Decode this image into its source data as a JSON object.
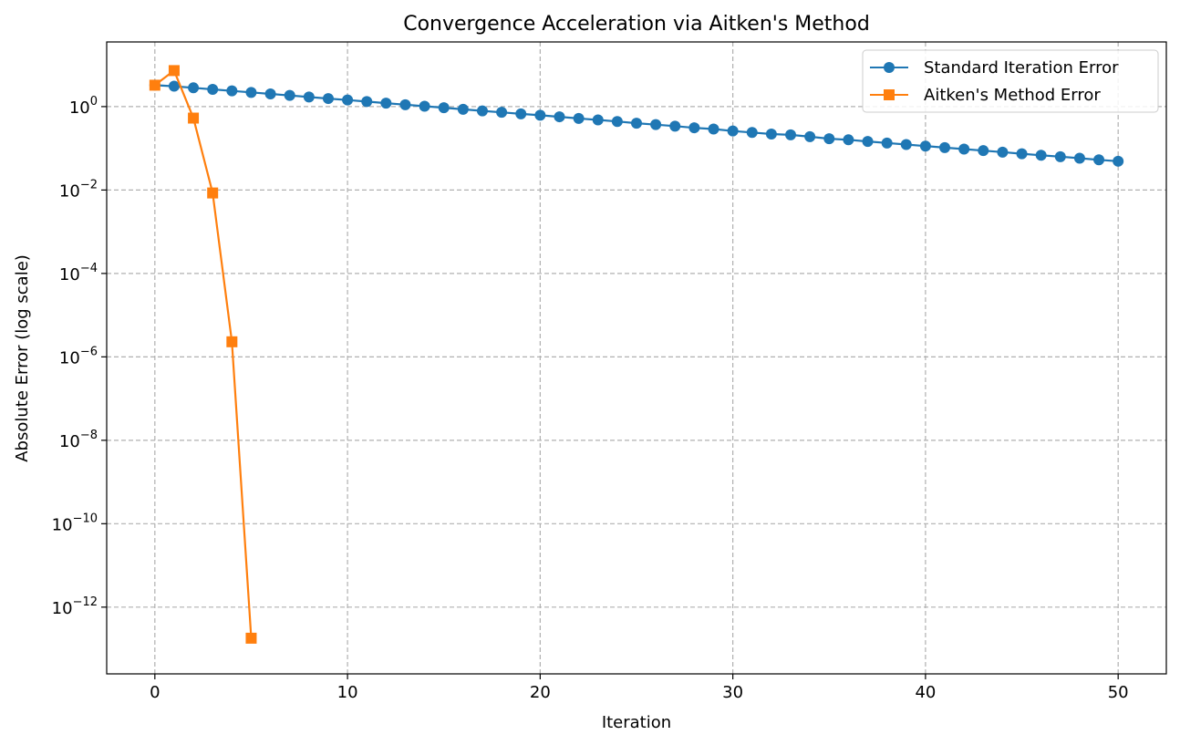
{
  "chart_data": {
    "type": "line",
    "title": "Convergence Acceleration via Aitken's Method",
    "xlabel": "Iteration",
    "ylabel": "Absolute Error (log scale)",
    "xlim": [
      -2.5,
      52.5
    ],
    "ylim_log10": [
      -13.6,
      1.55
    ],
    "yscale": "log",
    "grid": true,
    "legend_position": "top-right",
    "xticks": [
      0,
      10,
      20,
      30,
      40,
      50
    ],
    "xtick_labels": [
      "0",
      "10",
      "20",
      "30",
      "40",
      "50"
    ],
    "yticks_log10": [
      0,
      -2,
      -4,
      -6,
      -8,
      -10,
      -12
    ],
    "ytick_labels": [
      {
        "base": "10",
        "exp": "0"
      },
      {
        "base": "10",
        "exp": "−2"
      },
      {
        "base": "10",
        "exp": "−4"
      },
      {
        "base": "10",
        "exp": "−6"
      },
      {
        "base": "10",
        "exp": "−8"
      },
      {
        "base": "10",
        "exp": "−10"
      },
      {
        "base": "10",
        "exp": "−12"
      }
    ],
    "series": [
      {
        "name": "Standard Iteration Error",
        "color": "#1f77b4",
        "marker": "circle",
        "x": [
          0,
          1,
          2,
          3,
          4,
          5,
          6,
          7,
          8,
          9,
          10,
          11,
          12,
          13,
          14,
          15,
          16,
          17,
          18,
          19,
          20,
          21,
          22,
          23,
          24,
          25,
          26,
          27,
          28,
          29,
          30,
          31,
          32,
          33,
          34,
          35,
          36,
          37,
          38,
          39,
          40,
          41,
          42,
          43,
          44,
          45,
          46,
          47,
          48,
          49,
          50
        ],
        "y": [
          3.26,
          3.08,
          2.82,
          2.59,
          2.38,
          2.19,
          2.01,
          1.85,
          1.7,
          1.56,
          1.44,
          1.32,
          1.21,
          1.11,
          1.02,
          0.94,
          0.86,
          0.79,
          0.73,
          0.67,
          0.62,
          0.57,
          0.52,
          0.48,
          0.44,
          0.4,
          0.37,
          0.34,
          0.31,
          0.29,
          0.26,
          0.24,
          0.22,
          0.21,
          0.19,
          0.17,
          0.16,
          0.146,
          0.134,
          0.123,
          0.113,
          0.104,
          0.096,
          0.088,
          0.081,
          0.074,
          0.068,
          0.063,
          0.058,
          0.053,
          0.049
        ]
      },
      {
        "name": "Aitken's Method Error",
        "color": "#ff7f0e",
        "marker": "square",
        "x": [
          0,
          1,
          2,
          3,
          4,
          5
        ],
        "y": [
          3.26,
          7.3,
          0.53,
          0.0085,
          2.3e-06,
          1.8e-13
        ]
      }
    ]
  }
}
